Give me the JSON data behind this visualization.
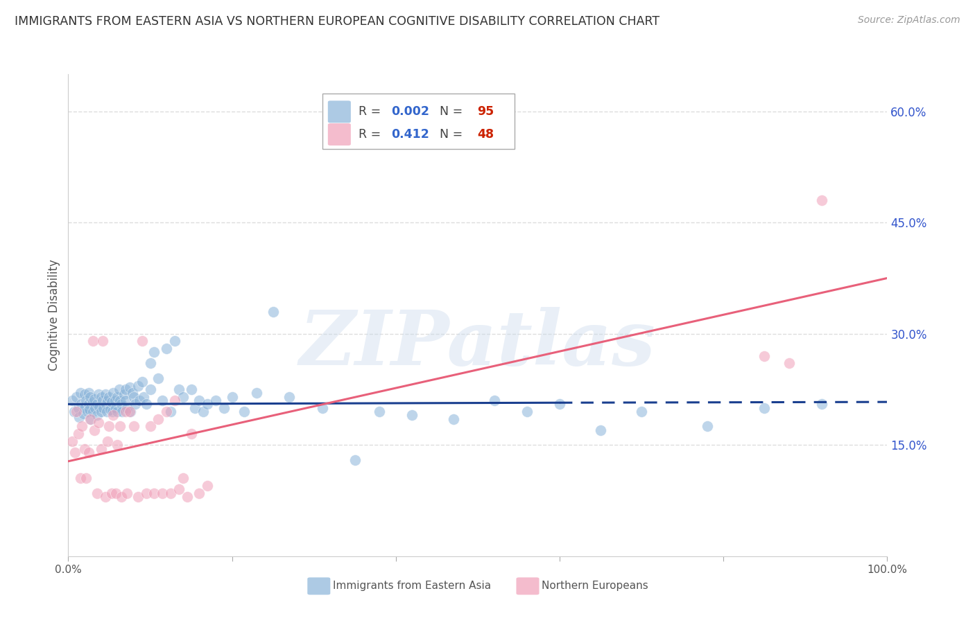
{
  "title": "IMMIGRANTS FROM EASTERN ASIA VS NORTHERN EUROPEAN COGNITIVE DISABILITY CORRELATION CHART",
  "source": "Source: ZipAtlas.com",
  "ylabel": "Cognitive Disability",
  "watermark": "ZIPatlas",
  "xlim": [
    0.0,
    1.0
  ],
  "ylim": [
    0.0,
    0.65
  ],
  "ytick_positions": [
    0.15,
    0.3,
    0.45,
    0.6
  ],
  "ytick_labels": [
    "15.0%",
    "30.0%",
    "45.0%",
    "60.0%"
  ],
  "grid_color": "#dddddd",
  "background_color": "#ffffff",
  "series1_label": "Immigrants from Eastern Asia",
  "series1_color": "#8ab4d9",
  "series1_R": "0.002",
  "series1_N": "95",
  "series2_label": "Northern Europeans",
  "series2_color": "#f0a0b8",
  "series2_R": "0.412",
  "series2_N": "48",
  "legend_R_color": "#3366cc",
  "legend_N_color": "#cc2200",
  "trendline1_color": "#1a3f8f",
  "trendline2_color": "#e8607a",
  "series1_x": [
    0.005,
    0.007,
    0.01,
    0.012,
    0.013,
    0.015,
    0.016,
    0.018,
    0.02,
    0.02,
    0.022,
    0.023,
    0.025,
    0.025,
    0.026,
    0.027,
    0.028,
    0.03,
    0.03,
    0.032,
    0.033,
    0.035,
    0.035,
    0.037,
    0.038,
    0.04,
    0.04,
    0.042,
    0.043,
    0.045,
    0.046,
    0.047,
    0.048,
    0.05,
    0.051,
    0.053,
    0.054,
    0.055,
    0.057,
    0.058,
    0.06,
    0.06,
    0.062,
    0.063,
    0.065,
    0.066,
    0.068,
    0.07,
    0.07,
    0.072,
    0.075,
    0.076,
    0.078,
    0.08,
    0.082,
    0.085,
    0.087,
    0.09,
    0.092,
    0.095,
    0.1,
    0.1,
    0.105,
    0.11,
    0.115,
    0.12,
    0.125,
    0.13,
    0.135,
    0.14,
    0.15,
    0.155,
    0.16,
    0.165,
    0.17,
    0.18,
    0.19,
    0.2,
    0.215,
    0.23,
    0.25,
    0.27,
    0.31,
    0.35,
    0.38,
    0.42,
    0.47,
    0.52,
    0.56,
    0.6,
    0.65,
    0.7,
    0.78,
    0.85,
    0.92
  ],
  "series1_y": [
    0.21,
    0.195,
    0.215,
    0.2,
    0.188,
    0.22,
    0.205,
    0.192,
    0.218,
    0.2,
    0.21,
    0.195,
    0.205,
    0.22,
    0.198,
    0.215,
    0.185,
    0.208,
    0.195,
    0.212,
    0.2,
    0.205,
    0.19,
    0.218,
    0.202,
    0.215,
    0.195,
    0.21,
    0.2,
    0.218,
    0.205,
    0.195,
    0.21,
    0.215,
    0.198,
    0.208,
    0.195,
    0.22,
    0.21,
    0.2,
    0.215,
    0.195,
    0.225,
    0.21,
    0.205,
    0.195,
    0.218,
    0.225,
    0.21,
    0.2,
    0.228,
    0.195,
    0.22,
    0.215,
    0.205,
    0.23,
    0.21,
    0.235,
    0.215,
    0.205,
    0.26,
    0.225,
    0.275,
    0.24,
    0.21,
    0.28,
    0.195,
    0.29,
    0.225,
    0.215,
    0.225,
    0.2,
    0.21,
    0.195,
    0.205,
    0.21,
    0.2,
    0.215,
    0.195,
    0.22,
    0.33,
    0.215,
    0.2,
    0.13,
    0.195,
    0.19,
    0.185,
    0.21,
    0.195,
    0.205,
    0.17,
    0.195,
    0.175,
    0.2,
    0.205
  ],
  "series2_x": [
    0.005,
    0.008,
    0.01,
    0.012,
    0.015,
    0.017,
    0.02,
    0.022,
    0.025,
    0.027,
    0.03,
    0.032,
    0.035,
    0.037,
    0.04,
    0.042,
    0.045,
    0.048,
    0.05,
    0.053,
    0.055,
    0.058,
    0.06,
    0.063,
    0.065,
    0.07,
    0.072,
    0.075,
    0.08,
    0.085,
    0.09,
    0.095,
    0.1,
    0.105,
    0.11,
    0.115,
    0.12,
    0.125,
    0.13,
    0.135,
    0.14,
    0.145,
    0.15,
    0.16,
    0.17,
    0.85,
    0.88,
    0.92
  ],
  "series2_y": [
    0.155,
    0.14,
    0.195,
    0.165,
    0.105,
    0.175,
    0.145,
    0.105,
    0.14,
    0.185,
    0.29,
    0.17,
    0.085,
    0.18,
    0.145,
    0.29,
    0.08,
    0.155,
    0.175,
    0.085,
    0.19,
    0.085,
    0.15,
    0.175,
    0.08,
    0.195,
    0.085,
    0.195,
    0.175,
    0.08,
    0.29,
    0.085,
    0.175,
    0.085,
    0.185,
    0.085,
    0.195,
    0.085,
    0.21,
    0.09,
    0.105,
    0.08,
    0.165,
    0.085,
    0.095,
    0.27,
    0.26,
    0.48
  ],
  "trend1_x0": 0.0,
  "trend1_x1": 0.6,
  "trend1_y0": 0.205,
  "trend1_y1": 0.207,
  "trend1_dash_x0": 0.6,
  "trend1_dash_x1": 1.0,
  "trend1_dash_y0": 0.207,
  "trend1_dash_y1": 0.208,
  "trend2_x0": 0.0,
  "trend2_x1": 1.0,
  "trend2_y0": 0.128,
  "trend2_y1": 0.375
}
